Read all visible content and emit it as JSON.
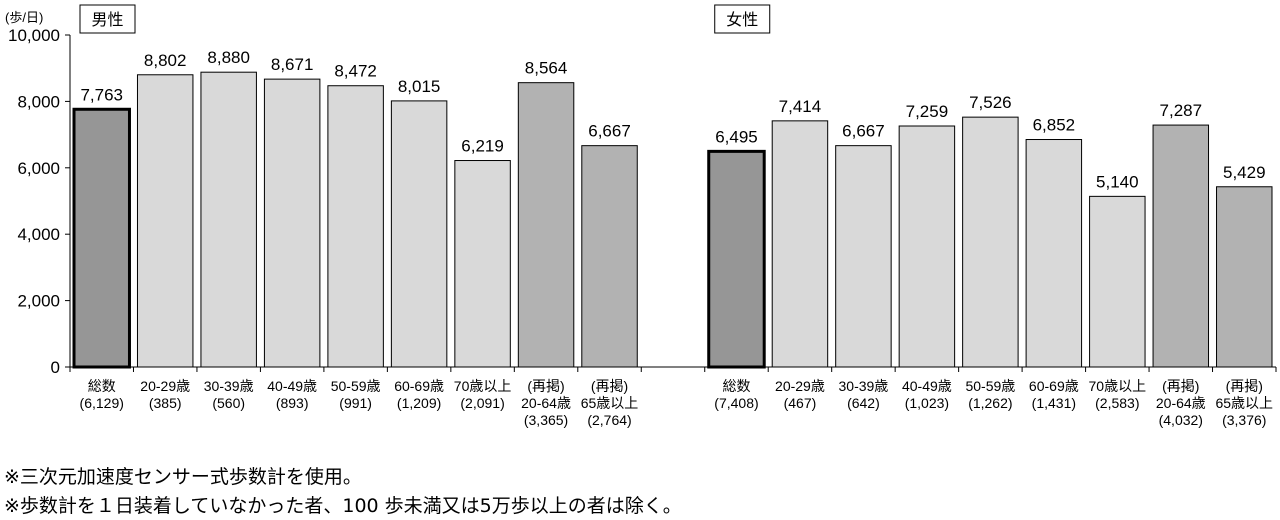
{
  "chart_data": {
    "type": "bar",
    "unit_label": "(歩/日)",
    "ylim": [
      0,
      10000
    ],
    "yticks": [
      "0",
      "2,000",
      "4,000",
      "6,000",
      "8,000",
      "10,000"
    ],
    "grid": false,
    "colors": {
      "total": "#969696",
      "age": "#d9d9d9",
      "repost": "#b2b2b2"
    },
    "groups": [
      {
        "name": "男性",
        "categories": [
          [
            "総数",
            "(6,129)"
          ],
          [
            "20-29歳",
            "(385)"
          ],
          [
            "30-39歳",
            "(560)"
          ],
          [
            "40-49歳",
            "(893)"
          ],
          [
            "50-59歳",
            "(991)"
          ],
          [
            "60-69歳",
            "(1,209)"
          ],
          [
            "70歳以上",
            "(2,091)"
          ],
          [
            "(再掲)",
            "20-64歳",
            "(3,365)"
          ],
          [
            "(再掲)",
            "65歳以上",
            "(2,764)"
          ]
        ],
        "values": [
          7763,
          8802,
          8880,
          8671,
          8472,
          8015,
          6219,
          8564,
          6667
        ],
        "labels": [
          "7,763",
          "8,802",
          "8,880",
          "8,671",
          "8,472",
          "8,015",
          "6,219",
          "8,564",
          "6,667"
        ]
      },
      {
        "name": "女性",
        "categories": [
          [
            "総数",
            "(7,408)"
          ],
          [
            "20-29歳",
            "(467)"
          ],
          [
            "30-39歳",
            "(642)"
          ],
          [
            "40-49歳",
            "(1,023)"
          ],
          [
            "50-59歳",
            "(1,262)"
          ],
          [
            "60-69歳",
            "(1,431)"
          ],
          [
            "70歳以上",
            "(2,583)"
          ],
          [
            "(再掲)",
            "20-64歳",
            "(4,032)"
          ],
          [
            "(再掲)",
            "65歳以上",
            "(3,376)"
          ]
        ],
        "values": [
          6495,
          7414,
          6667,
          7259,
          7526,
          6852,
          5140,
          7287,
          5429
        ],
        "labels": [
          "6,495",
          "7,414",
          "6,667",
          "7,259",
          "7,526",
          "6,852",
          "5,140",
          "7,287",
          "5,429"
        ]
      }
    ]
  },
  "notes": [
    "※三次元加速度センサー式歩数計を使用。",
    "※歩数計を１日装着していなかった者、100 歩未満又は5万歩以上の者は除く。"
  ]
}
